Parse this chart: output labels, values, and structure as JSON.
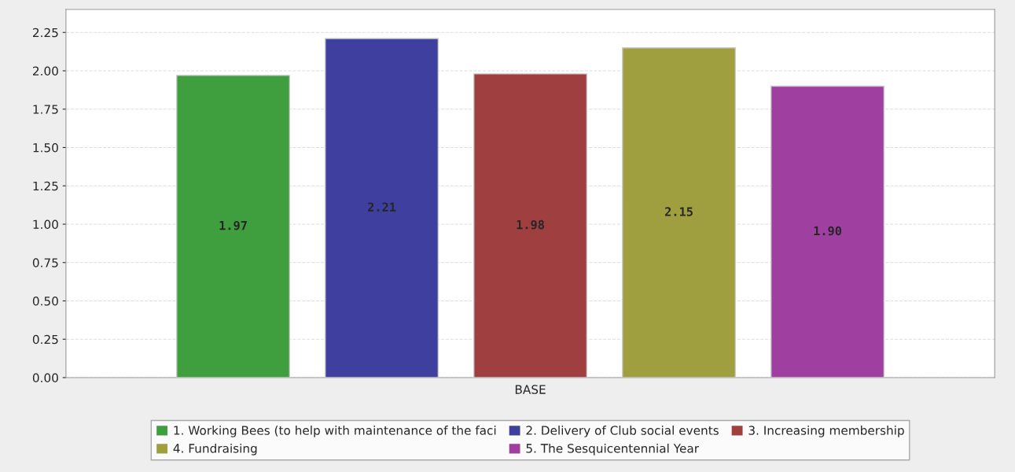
{
  "chart_data": {
    "type": "bar",
    "categories": [
      "BASE"
    ],
    "series": [
      {
        "name": "1. Working Bees (to help with maintenance of the faci",
        "color": "#3f9f3f",
        "values": [
          1.97
        ],
        "value_labels": [
          "1.97"
        ]
      },
      {
        "name": "2. Delivery of Club social events",
        "color": "#3f3f9f",
        "values": [
          2.21
        ],
        "value_labels": [
          "2.21"
        ]
      },
      {
        "name": "3. Increasing membership",
        "color": "#9f3f3f",
        "values": [
          1.98
        ],
        "value_labels": [
          "1.98"
        ]
      },
      {
        "name": "4. Fundraising",
        "color": "#9f9f3f",
        "values": [
          2.15
        ],
        "value_labels": [
          "2.15"
        ]
      },
      {
        "name": "5. The Sesquicentennial Year",
        "color": "#9f3f9f",
        "values": [
          1.9
        ],
        "value_labels": [
          "1.90"
        ]
      }
    ],
    "ylim": [
      0,
      2.4
    ],
    "yticks": [
      {
        "value": 0,
        "label": "0.00"
      },
      {
        "value": 0.25,
        "label": "0.25"
      },
      {
        "value": 0.5,
        "label": "0.50"
      },
      {
        "value": 0.75,
        "label": "0.75"
      },
      {
        "value": 1,
        "label": "1.00"
      },
      {
        "value": 1.25,
        "label": "1.25"
      },
      {
        "value": 1.5,
        "label": "1.50"
      },
      {
        "value": 1.75,
        "label": "1.75"
      },
      {
        "value": 2,
        "label": "2.00"
      },
      {
        "value": 2.25,
        "label": "2.25"
      }
    ],
    "grid": "y",
    "legend": "bottom"
  }
}
